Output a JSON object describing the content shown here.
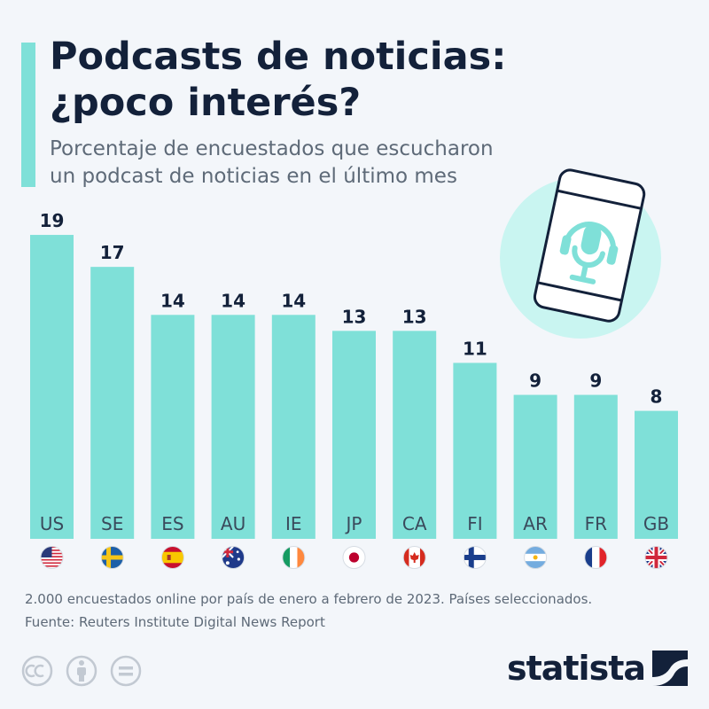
{
  "header": {
    "title_line1": "Podcasts de noticias:",
    "title_line2": "¿poco interés?",
    "subtitle_line1": "Porcentaje de encuestados que escucharon",
    "subtitle_line2": "un podcast de noticias en el último mes"
  },
  "chart_data": {
    "type": "bar",
    "categories": [
      "US",
      "SE",
      "ES",
      "AU",
      "IE",
      "JP",
      "CA",
      "FI",
      "AR",
      "FR",
      "GB"
    ],
    "values": [
      19,
      17,
      14,
      14,
      14,
      13,
      13,
      11,
      9,
      9,
      8
    ],
    "ylim": [
      0,
      20
    ],
    "grid": false,
    "bar_color": "#7fe0d8"
  },
  "footer": {
    "note": "2.000 encuestados online por país de enero a febrero de 2023. Países seleccionados.",
    "source": "Fuente: Reuters Institute Digital News Report"
  },
  "brand": {
    "name": "statista"
  },
  "icons": [
    "podcast-phone-icon",
    "creative-commons-icon",
    "attribution-icon",
    "no-derivatives-icon"
  ],
  "colors": {
    "accent": "#7fe0d8",
    "dark": "#13213a",
    "muted": "#5e6a78",
    "background": "#f3f6fa"
  }
}
